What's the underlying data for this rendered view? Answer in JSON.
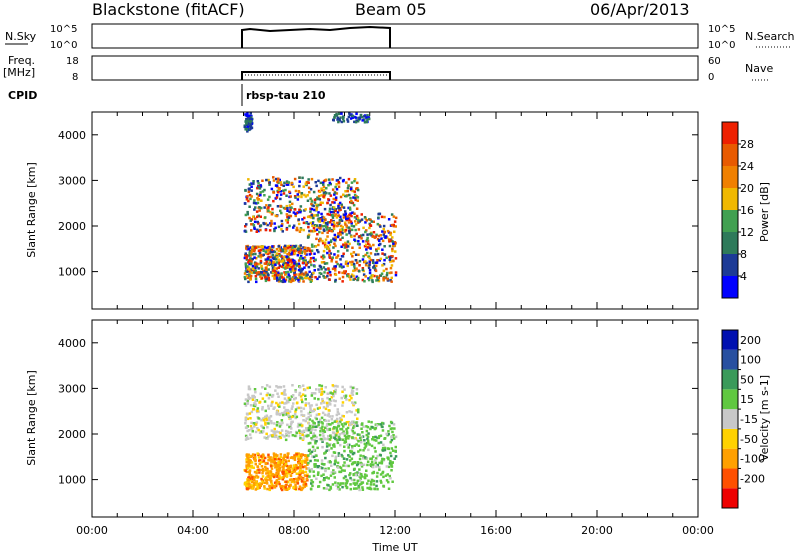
{
  "header": {
    "title_left": "Blackstone (fitACF)",
    "title_center": "Beam 05",
    "title_right": "06/Apr/2013"
  },
  "panels": {
    "nsky": {
      "label": "N.Sky",
      "left_ticks": [
        "10^5",
        "10^0"
      ],
      "right_ticks": [
        "10^5",
        "10^0"
      ],
      "right_label": "N.Search"
    },
    "freq": {
      "label_top": "Freq.",
      "label_bottom": "[MHz]",
      "left_ticks": [
        "18",
        "8"
      ],
      "right_ticks": [
        "60",
        "0"
      ],
      "right_label": "Nave"
    },
    "cpid": {
      "label": "CPID",
      "program": "rbsp-tau 210"
    }
  },
  "colors": {
    "power_scale": [
      "#0000ff",
      "#1c3a96",
      "#2e7a5a",
      "#41a051",
      "#f0b800",
      "#f08000",
      "#e85a00",
      "#ee2000"
    ],
    "velocity_scale": [
      "#ee0000",
      "#ff5000",
      "#ffa000",
      "#ffd200",
      "#c8c8c8",
      "#60c840",
      "#3a9a5a",
      "#2850a0",
      "#0010b0"
    ]
  },
  "chart_data": [
    {
      "type": "heatmap",
      "title": "",
      "quantity": "Power",
      "xlabel": "",
      "ylabel": "Slant Range [km]",
      "xlim": [
        "00:00",
        "24:00"
      ],
      "ylim": [
        180,
        4500
      ],
      "yticks": [
        1000,
        2000,
        3000,
        4000
      ],
      "colorbar": {
        "label": "Power [dB]",
        "ticks": [
          4,
          8,
          12,
          16,
          20,
          24,
          28
        ],
        "range": [
          0,
          32
        ]
      },
      "echo_regions": [
        {
          "t_start": 6.0,
          "t_end": 6.3,
          "range_start": 4100,
          "range_end": 4500,
          "level": "weak"
        },
        {
          "t_start": 6.0,
          "t_end": 10.5,
          "range_start": 1900,
          "range_end": 3100,
          "level": "strong"
        },
        {
          "t_start": 6.0,
          "t_end": 8.5,
          "range_start": 800,
          "range_end": 1600,
          "level": "strong"
        },
        {
          "t_start": 8.5,
          "t_end": 12.0,
          "range_start": 800,
          "range_end": 2300,
          "level": "strong"
        },
        {
          "t_start": 9.5,
          "t_end": 11.0,
          "range_start": 4300,
          "range_end": 4500,
          "level": "weak"
        }
      ]
    },
    {
      "type": "heatmap",
      "title": "",
      "quantity": "Velocity",
      "xlabel": "Time UT",
      "ylabel": "Slant Range [km]",
      "xlim": [
        "00:00",
        "24:00"
      ],
      "ylim": [
        180,
        4500
      ],
      "yticks": [
        1000,
        2000,
        3000,
        4000
      ],
      "xticks": [
        "00:00",
        "04:00",
        "08:00",
        "12:00",
        "16:00",
        "20:00",
        "00:00"
      ],
      "colorbar": {
        "label": "Velocity [m s-1]",
        "ticks": [
          200,
          100,
          50,
          15,
          -15,
          -50,
          -100,
          -200
        ]
      },
      "echo_regions": [
        {
          "t_start": 6.0,
          "t_end": 10.5,
          "range_start": 1900,
          "range_end": 3100,
          "dominant": "near-zero"
        },
        {
          "t_start": 6.0,
          "t_end": 8.5,
          "range_start": 800,
          "range_end": 1600,
          "dominant": "negative"
        },
        {
          "t_start": 8.5,
          "t_end": 12.0,
          "range_start": 800,
          "range_end": 2300,
          "dominant": "positive"
        }
      ]
    }
  ]
}
